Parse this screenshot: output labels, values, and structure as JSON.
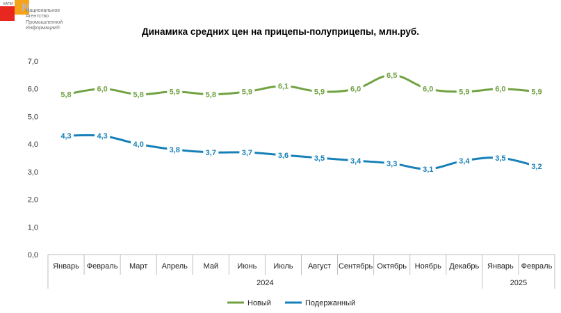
{
  "logo": {
    "abbr": "НАПИ",
    "lines": [
      "Национальное",
      "Агентство",
      "Промышленной",
      "Информации®"
    ]
  },
  "chart_data": {
    "type": "line",
    "title": "Динамика средних цен на прицепы-полуприцепы, млн.руб.",
    "categories": [
      "Январь",
      "Февраль",
      "Март",
      "Апрель",
      "Май",
      "Июнь",
      "Июль",
      "Август",
      "Сентябрь",
      "Октябрь",
      "Ноябрь",
      "Декабрь",
      "Январь",
      "Февраль"
    ],
    "year_groups": [
      {
        "label": "2024",
        "count": 12
      },
      {
        "label": "2025",
        "count": 2
      }
    ],
    "ylim": [
      0,
      7
    ],
    "yticks": [
      "0,0",
      "1,0",
      "2,0",
      "3,0",
      "4,0",
      "5,0",
      "6,0",
      "7,0"
    ],
    "series": [
      {
        "name": "Новый",
        "color": "#70a241",
        "values": [
          5.8,
          6.0,
          5.8,
          5.9,
          5.8,
          5.9,
          6.1,
          5.9,
          6.0,
          6.5,
          6.0,
          5.9,
          6.0,
          5.9
        ],
        "labels": [
          "5,8",
          "6,0",
          "5,8",
          "5,9",
          "5,8",
          "5,9",
          "6,1",
          "5,9",
          "6,0",
          "6,5",
          "6,0",
          "5,9",
          "6,0",
          "5,9"
        ]
      },
      {
        "name": "Подержанный",
        "color": "#1680b8",
        "values": [
          4.3,
          4.3,
          4.0,
          3.8,
          3.7,
          3.7,
          3.6,
          3.5,
          3.4,
          3.3,
          3.1,
          3.4,
          3.5,
          3.2
        ],
        "labels": [
          "4,3",
          "4,3",
          "4,0",
          "3,8",
          "3,7",
          "3,7",
          "3,6",
          "3,5",
          "3,4",
          "3,3",
          "3,1",
          "3,4",
          "3,5",
          "3,2"
        ]
      }
    ],
    "legend": "bottom",
    "grid": false
  }
}
